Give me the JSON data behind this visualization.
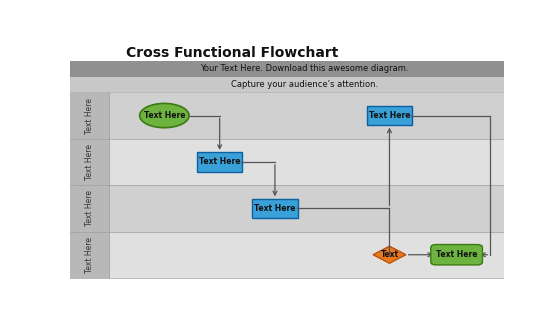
{
  "title": "Cross Functional Flowchart",
  "subtitle1": "Your Text Here. Download this awesome diagram.",
  "subtitle2": "Capture your audience’s attention.",
  "bg_color": "#f0f0f0",
  "lane_labels": [
    "Text Here",
    "Text Here",
    "Text Here",
    "Text Here"
  ],
  "lane_colors": [
    "#d0d0d0",
    "#e0e0e0",
    "#d0d0d0",
    "#e0e0e0"
  ],
  "lane_label_bg": "#b8b8b8",
  "header_color_top": "#909090",
  "header_color_bot": "#c8c8c8",
  "ellipse_color": "#6db33f",
  "ellipse_edge": "#3a7a10",
  "blue_rect_color": "#3aa0d8",
  "blue_rect_edge": "#0a60a0",
  "diamond_color": "#e87820",
  "diamond_edge": "#b05010",
  "green_rr_color": "#6db33f",
  "green_rr_edge": "#3a7a10",
  "arrow_color": "#555555",
  "label_fontsize": 5.5,
  "lane_label_fontsize": 5.5,
  "title_fontsize": 10,
  "subtitle_fontsize": 6
}
